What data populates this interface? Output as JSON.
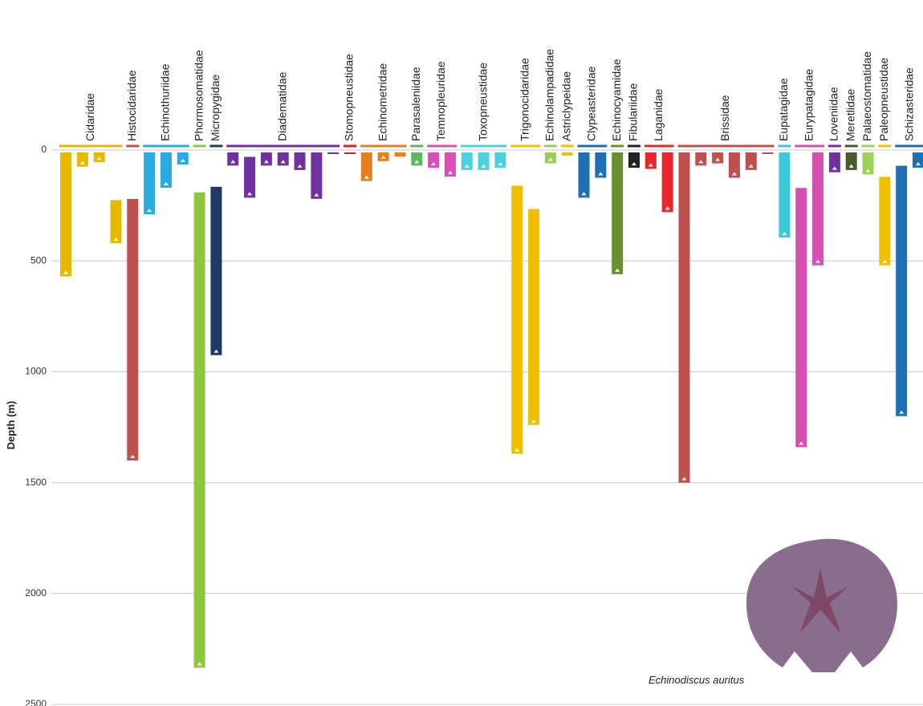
{
  "chart_data": {
    "type": "range-bar",
    "y_label": "Depth (m)",
    "annotation": "Echinodiscus auritus",
    "ylim": [
      0,
      2500
    ],
    "yticks": [
      0,
      500,
      1000,
      1500,
      2000,
      2500
    ],
    "y_inverted": true,
    "grid": true,
    "families": [
      {
        "name": "Cidaridae",
        "color": "#e6b800",
        "bars": [
          [
            0,
            570
          ],
          [
            0,
            75
          ],
          [
            0,
            55
          ],
          [
            215,
            420
          ]
        ]
      },
      {
        "name": "Histocidaridae",
        "color": "#c0504d",
        "bars": [
          [
            210,
            1400
          ]
        ]
      },
      {
        "name": "Echinothuriidae",
        "color": "#29abe2",
        "bars": [
          [
            0,
            290
          ],
          [
            0,
            170
          ],
          [
            0,
            65
          ]
        ]
      },
      {
        "name": "Phormosomatidae",
        "color": "#8dc63f",
        "bars": [
          [
            180,
            2335
          ]
        ]
      },
      {
        "name": "Micropygidae",
        "color": "#1f3864",
        "bars": [
          [
            155,
            925
          ]
        ]
      },
      {
        "name": "Diadematidae",
        "color": "#7030a0",
        "bars": [
          [
            0,
            70
          ],
          [
            20,
            215
          ],
          [
            0,
            70
          ],
          [
            0,
            70
          ],
          [
            0,
            90
          ],
          [
            0,
            220
          ],
          [
            0,
            15
          ]
        ]
      },
      {
        "name": "Stomopneustidae",
        "color": "#e02020",
        "bars": [
          [
            0,
            10
          ]
        ]
      },
      {
        "name": "Echinometridae",
        "color": "#e67e22",
        "bars": [
          [
            0,
            140
          ],
          [
            0,
            50
          ],
          [
            0,
            30
          ]
        ]
      },
      {
        "name": "Parasaleniidae",
        "color": "#5cb85c",
        "bars": [
          [
            0,
            70
          ]
        ]
      },
      {
        "name": "Temnopleuridae",
        "color": "#d94fb5",
        "bars": [
          [
            0,
            80
          ],
          [
            0,
            120
          ]
        ]
      },
      {
        "name": "Toxopneustidae",
        "color": "#4dd0e1",
        "bars": [
          [
            0,
            90
          ],
          [
            0,
            90
          ],
          [
            0,
            80
          ]
        ]
      },
      {
        "name": "Trigonocidaridae",
        "color": "#f0c000",
        "bars": [
          [
            150,
            1370
          ],
          [
            255,
            1240
          ]
        ]
      },
      {
        "name": "Echinolampadidae",
        "color": "#9bcd5a",
        "bars": [
          [
            0,
            60
          ]
        ]
      },
      {
        "name": "Astriclypeidae",
        "color": "#f0c000",
        "bars": [
          [
            0,
            25
          ]
        ]
      },
      {
        "name": "Clypeasteridae",
        "color": "#1f6fb5",
        "bars": [
          [
            0,
            215
          ],
          [
            0,
            125
          ]
        ]
      },
      {
        "name": "Echinocyamidae",
        "color": "#6a8f2f",
        "bars": [
          [
            0,
            560
          ]
        ]
      },
      {
        "name": "Fibulariidae",
        "color": "#222222",
        "bars": [
          [
            0,
            80
          ]
        ]
      },
      {
        "name": "Laganidae",
        "color": "#e8262b",
        "bars": [
          [
            0,
            85
          ],
          [
            0,
            280
          ]
        ]
      },
      {
        "name": "Brissidae",
        "color": "#c0504d",
        "bars": [
          [
            0,
            1500
          ],
          [
            0,
            70
          ],
          [
            0,
            60
          ],
          [
            0,
            125
          ],
          [
            0,
            90
          ],
          [
            0,
            15
          ]
        ]
      },
      {
        "name": "Eupatagidae",
        "color": "#3cc8d8",
        "bars": [
          [
            0,
            395
          ]
        ]
      },
      {
        "name": "Eurypatagidae",
        "color": "#d44fb0",
        "bars": [
          [
            160,
            1340
          ],
          [
            0,
            520
          ]
        ]
      },
      {
        "name": "Loveniidae",
        "color": "#7030a0",
        "bars": [
          [
            0,
            100
          ]
        ]
      },
      {
        "name": "Meretlidae",
        "color": "#4a5a2a",
        "bars": [
          [
            0,
            90
          ]
        ]
      },
      {
        "name": "Palaeostomatidae",
        "color": "#9bd35a",
        "bars": [
          [
            0,
            110
          ]
        ]
      },
      {
        "name": "Paleopneustidae",
        "color": "#f0c000",
        "bars": [
          [
            110,
            520
          ]
        ]
      },
      {
        "name": "Schizasteridae",
        "color": "#1f6fb5",
        "bars": [
          [
            60,
            1200
          ],
          [
            0,
            80
          ]
        ]
      }
    ]
  }
}
